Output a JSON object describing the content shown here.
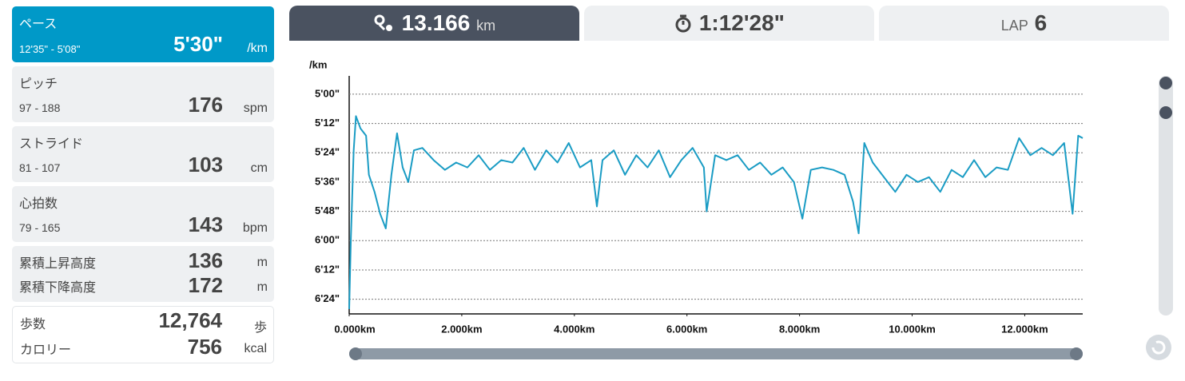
{
  "sidebar": {
    "pace": {
      "label": "ペース",
      "range": "12'35\" - 5'08\"",
      "value": "5'30\"",
      "unit": "/km"
    },
    "pitch": {
      "label": "ピッチ",
      "range": "97 - 188",
      "value": 176,
      "unit": "spm"
    },
    "stride": {
      "label": "ストライド",
      "range": "81 - 107",
      "value": 103,
      "unit": "cm"
    },
    "heart_rate": {
      "label": "心拍数",
      "range": "79 - 165",
      "value": 143,
      "unit": "bpm"
    },
    "elevation": [
      {
        "label": "累積上昇高度",
        "value": 136,
        "unit": "m"
      },
      {
        "label": "累積下降高度",
        "value": 172,
        "unit": "m"
      }
    ],
    "activity": [
      {
        "label": "歩数",
        "value": "12,764",
        "unit": "歩"
      },
      {
        "label": "カロリー",
        "value": 756,
        "unit": "kcal"
      }
    ]
  },
  "tabs": {
    "distance": {
      "value": 13.166,
      "unit": "km"
    },
    "time": "1:12'28\"",
    "lap": {
      "label": "LAP",
      "value": 6
    }
  },
  "chart_data": {
    "type": "line",
    "y_label": "/km",
    "y_reversed": true,
    "grid": true,
    "xlim": [
      0,
      13.03
    ],
    "ylim": [
      292.5,
      390
    ],
    "xticks": [
      {
        "value": 0,
        "label": "0.000km"
      },
      {
        "value": 2,
        "label": "2.000km"
      },
      {
        "value": 4,
        "label": "4.000km"
      },
      {
        "value": 6,
        "label": "6.000km"
      },
      {
        "value": 8,
        "label": "8.000km"
      },
      {
        "value": 10,
        "label": "10.000km"
      },
      {
        "value": 12,
        "label": "12.000km"
      }
    ],
    "yticks": [
      {
        "value": 300,
        "label": "5'00\""
      },
      {
        "value": 312,
        "label": "5'12\""
      },
      {
        "value": 324,
        "label": "5'24\""
      },
      {
        "value": 336,
        "label": "5'36\""
      },
      {
        "value": 348,
        "label": "5'48\""
      },
      {
        "value": 360,
        "label": "6'00\""
      },
      {
        "value": 372,
        "label": "6'12\""
      },
      {
        "value": 384,
        "label": "6'24\""
      }
    ],
    "series": [
      {
        "name": "pace",
        "color": "#1a9cc4",
        "x": [
          0,
          0.03,
          0.08,
          0.12,
          0.2,
          0.3,
          0.35,
          0.45,
          0.55,
          0.65,
          0.75,
          0.85,
          0.95,
          1.05,
          1.15,
          1.3,
          1.5,
          1.7,
          1.9,
          2.1,
          2.3,
          2.5,
          2.7,
          2.9,
          3.1,
          3.3,
          3.5,
          3.7,
          3.9,
          4.1,
          4.3,
          4.4,
          4.5,
          4.7,
          4.9,
          5.1,
          5.3,
          5.5,
          5.7,
          5.9,
          6.1,
          6.3,
          6.35,
          6.5,
          6.7,
          6.9,
          7.1,
          7.3,
          7.5,
          7.7,
          7.9,
          8.05,
          8.2,
          8.4,
          8.6,
          8.8,
          8.95,
          9.05,
          9.15,
          9.3,
          9.5,
          9.7,
          9.9,
          10.1,
          10.3,
          10.5,
          10.7,
          10.9,
          11.1,
          11.3,
          11.5,
          11.7,
          11.9,
          12.1,
          12.3,
          12.5,
          12.7,
          12.85,
          12.95,
          13.03
        ],
        "values": [
          388,
          359,
          323,
          309,
          314,
          317,
          333,
          340,
          349,
          355,
          333,
          316,
          330,
          336,
          323,
          322,
          327,
          331,
          328,
          330,
          325,
          331,
          327,
          328,
          322,
          331,
          323,
          328,
          320,
          330,
          327,
          346,
          327,
          323,
          333,
          325,
          330,
          323,
          334,
          327,
          322,
          330,
          348,
          325,
          327,
          325,
          331,
          328,
          333,
          330,
          336,
          351,
          331,
          330,
          331,
          333,
          344,
          357,
          320,
          328,
          334,
          340,
          333,
          336,
          334,
          340,
          331,
          334,
          327,
          334,
          330,
          331,
          318,
          325,
          322,
          325,
          320,
          349,
          317,
          318
        ]
      }
    ]
  }
}
